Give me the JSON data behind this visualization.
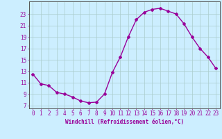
{
  "x": [
    0,
    1,
    2,
    3,
    4,
    5,
    6,
    7,
    8,
    9,
    10,
    11,
    12,
    13,
    14,
    15,
    16,
    17,
    18,
    19,
    20,
    21,
    22,
    23
  ],
  "y": [
    12.5,
    10.8,
    10.5,
    9.3,
    9.0,
    8.5,
    7.8,
    7.5,
    7.6,
    9.0,
    12.8,
    15.5,
    19.0,
    22.0,
    23.3,
    23.8,
    24.0,
    23.5,
    23.0,
    21.3,
    19.0,
    17.0,
    15.5,
    13.5
  ],
  "line_color": "#990099",
  "marker": "D",
  "markersize": 2.0,
  "linewidth": 1.0,
  "xlabel": "Windchill (Refroidissement éolien,°C)",
  "xlabel_fontsize": 5.5,
  "xtick_labels": [
    "0",
    "1",
    "2",
    "3",
    "4",
    "5",
    "6",
    "7",
    "8",
    "9",
    "10",
    "11",
    "12",
    "13",
    "14",
    "15",
    "16",
    "17",
    "18",
    "19",
    "20",
    "21",
    "22",
    "23"
  ],
  "ytick_values": [
    7,
    9,
    11,
    13,
    15,
    17,
    19,
    21,
    23
  ],
  "ytick_labels": [
    "7",
    "9",
    "11",
    "13",
    "15",
    "17",
    "19",
    "21",
    "23"
  ],
  "ylim": [
    6.5,
    25.2
  ],
  "xlim": [
    -0.5,
    23.5
  ],
  "bg_color": "#cceeff",
  "grid_color": "#aacccc",
  "tick_color": "#990099",
  "tick_fontsize": 5.5,
  "spine_color": "#555555"
}
